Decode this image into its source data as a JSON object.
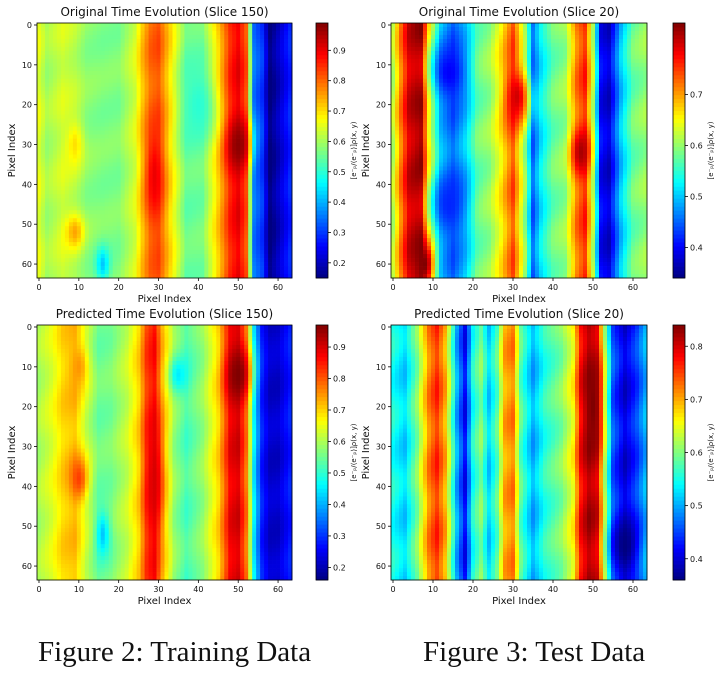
{
  "figure_captions": [
    "Figure 2: Training Data",
    "Figure 3: Test Data"
  ],
  "chart_data": [
    {
      "type": "heatmap",
      "title": "Original Time Evolution (Slice 150)",
      "xlabel": "Pixel Index",
      "ylabel": "Pixel Index",
      "xticks": [
        0,
        10,
        20,
        30,
        40,
        50,
        60
      ],
      "yticks": [
        0,
        10,
        20,
        30,
        40,
        50,
        60
      ],
      "grid_size": 64,
      "colormap": "jet",
      "colorbar_label": "[e⁻ₚ/⟨e⁻ₚ⟩]ρ(x, y)",
      "colorbar_ticks": [
        0.2,
        0.3,
        0.4,
        0.5,
        0.6,
        0.7,
        0.8,
        0.9
      ],
      "vmin": 0.15,
      "vmax": 0.99,
      "column_profile": {
        "x": [
          0,
          2,
          6,
          9,
          12,
          16,
          20,
          24,
          26,
          28,
          30,
          33,
          37,
          41,
          45,
          48,
          50,
          52,
          54,
          56,
          58,
          60,
          63
        ],
        "values": [
          0.65,
          0.6,
          0.64,
          0.62,
          0.58,
          0.57,
          0.57,
          0.64,
          0.73,
          0.8,
          0.82,
          0.7,
          0.55,
          0.56,
          0.72,
          0.86,
          0.9,
          0.82,
          0.35,
          0.3,
          0.15,
          0.2,
          0.28
        ]
      },
      "features": [
        {
          "x": 50,
          "y": 30,
          "value": 0.98,
          "sx": 2,
          "sy": 5
        },
        {
          "x": 9,
          "y": 52,
          "value": 0.75,
          "sx": 1.6,
          "sy": 3
        },
        {
          "x": 9,
          "y": 30,
          "value": 0.7,
          "sx": 1.5,
          "sy": 4
        },
        {
          "x": 16,
          "y": 60,
          "value": 0.42,
          "sx": 1.2,
          "sy": 3
        },
        {
          "x": 29,
          "y": 38,
          "value": 0.9,
          "sx": 1.5,
          "sy": 8
        },
        {
          "x": 40,
          "y": 20,
          "value": 0.5,
          "sx": 3,
          "sy": 7
        }
      ]
    },
    {
      "type": "heatmap",
      "title": "Original Time Evolution (Slice 20)",
      "xlabel": "Pixel Index",
      "ylabel": "Pixel Index",
      "xticks": [
        0,
        10,
        20,
        30,
        40,
        50,
        60
      ],
      "yticks": [
        0,
        10,
        20,
        30,
        40,
        50,
        60
      ],
      "grid_size": 64,
      "colormap": "jet",
      "colorbar_label": "[e⁻ₚ/⟨e⁻ₚ⟩]ρ(x, y)",
      "colorbar_ticks": [
        0.4,
        0.5,
        0.6,
        0.7
      ],
      "vmin": 0.34,
      "vmax": 0.84,
      "column_profile": {
        "x": [
          0,
          2,
          4,
          7,
          9,
          12,
          15,
          18,
          21,
          24,
          27,
          30,
          33,
          35,
          37,
          40,
          43,
          46,
          48,
          50,
          52,
          54,
          57,
          60,
          63
        ],
        "values": [
          0.62,
          0.72,
          0.8,
          0.83,
          0.66,
          0.5,
          0.45,
          0.5,
          0.58,
          0.6,
          0.66,
          0.74,
          0.6,
          0.45,
          0.52,
          0.58,
          0.6,
          0.72,
          0.76,
          0.62,
          0.4,
          0.38,
          0.5,
          0.58,
          0.6
        ]
      },
      "features": [
        {
          "x": 31,
          "y": 18,
          "value": 0.8,
          "sx": 2,
          "sy": 5
        },
        {
          "x": 47,
          "y": 32,
          "value": 0.82,
          "sx": 1.5,
          "sy": 4
        },
        {
          "x": 14,
          "y": 12,
          "value": 0.4,
          "sx": 3,
          "sy": 5
        },
        {
          "x": 14,
          "y": 45,
          "value": 0.42,
          "sx": 3,
          "sy": 6
        },
        {
          "x": 8,
          "y": 60,
          "value": 0.84,
          "sx": 1.5,
          "sy": 4
        }
      ]
    },
    {
      "type": "heatmap",
      "title": "Predicted Time Evolution (Slice 150)",
      "xlabel": "Pixel Index",
      "ylabel": "Pixel Index",
      "xticks": [
        0,
        10,
        20,
        30,
        40,
        50,
        60
      ],
      "yticks": [
        0,
        10,
        20,
        30,
        40,
        50,
        60
      ],
      "grid_size": 64,
      "colormap": "jet",
      "colorbar_label": "[e⁻ₚ/⟨e⁻ₚ⟩]ρ(x, y)",
      "colorbar_ticks": [
        0.2,
        0.3,
        0.4,
        0.5,
        0.6,
        0.7,
        0.8,
        0.9
      ],
      "vmin": 0.16,
      "vmax": 0.97,
      "column_profile": {
        "x": [
          0,
          3,
          6,
          9,
          12,
          15,
          18,
          22,
          25,
          27,
          29,
          31,
          34,
          37,
          41,
          45,
          48,
          50,
          52,
          54,
          56,
          58,
          60,
          63
        ],
        "values": [
          0.6,
          0.64,
          0.7,
          0.72,
          0.62,
          0.55,
          0.56,
          0.62,
          0.7,
          0.82,
          0.86,
          0.72,
          0.58,
          0.52,
          0.58,
          0.7,
          0.88,
          0.9,
          0.78,
          0.45,
          0.28,
          0.22,
          0.22,
          0.28
        ]
      },
      "features": [
        {
          "x": 50,
          "y": 12,
          "value": 0.97,
          "sx": 2,
          "sy": 5
        },
        {
          "x": 10,
          "y": 38,
          "value": 0.82,
          "sx": 1.6,
          "sy": 4
        },
        {
          "x": 10,
          "y": 10,
          "value": 0.75,
          "sx": 1.6,
          "sy": 4
        },
        {
          "x": 16,
          "y": 52,
          "value": 0.42,
          "sx": 1.2,
          "sy": 4
        },
        {
          "x": 35,
          "y": 12,
          "value": 0.45,
          "sx": 1.5,
          "sy": 3
        },
        {
          "x": 29,
          "y": 38,
          "value": 0.9,
          "sx": 1.5,
          "sy": 12
        }
      ]
    },
    {
      "type": "heatmap",
      "title": "Predicted Time Evolution (Slice 20)",
      "xlabel": "Pixel Index",
      "ylabel": "Pixel Index",
      "xticks": [
        0,
        10,
        20,
        30,
        40,
        50,
        60
      ],
      "yticks": [
        0,
        10,
        20,
        30,
        40,
        50,
        60
      ],
      "grid_size": 64,
      "colormap": "jet",
      "colorbar_label": "[e⁻ₚ/⟨e⁻ₚ⟩]ρ(x, y)",
      "colorbar_ticks": [
        0.4,
        0.5,
        0.6,
        0.7,
        0.8
      ],
      "vmin": 0.36,
      "vmax": 0.84,
      "column_profile": {
        "x": [
          0,
          3,
          6,
          9,
          11,
          13,
          16,
          18,
          20,
          22,
          24,
          26,
          28,
          30,
          32,
          35,
          38,
          42,
          45,
          47,
          49,
          51,
          53,
          55,
          58,
          61,
          63
        ],
        "values": [
          0.55,
          0.52,
          0.6,
          0.72,
          0.76,
          0.7,
          0.5,
          0.42,
          0.55,
          0.6,
          0.52,
          0.58,
          0.7,
          0.72,
          0.58,
          0.5,
          0.56,
          0.6,
          0.66,
          0.78,
          0.82,
          0.8,
          0.62,
          0.46,
          0.4,
          0.45,
          0.5
        ]
      },
      "features": [
        {
          "x": 50,
          "y": 20,
          "value": 0.84,
          "sx": 1.5,
          "sy": 8
        },
        {
          "x": 58,
          "y": 55,
          "value": 0.36,
          "sx": 2,
          "sy": 5
        }
      ]
    }
  ]
}
